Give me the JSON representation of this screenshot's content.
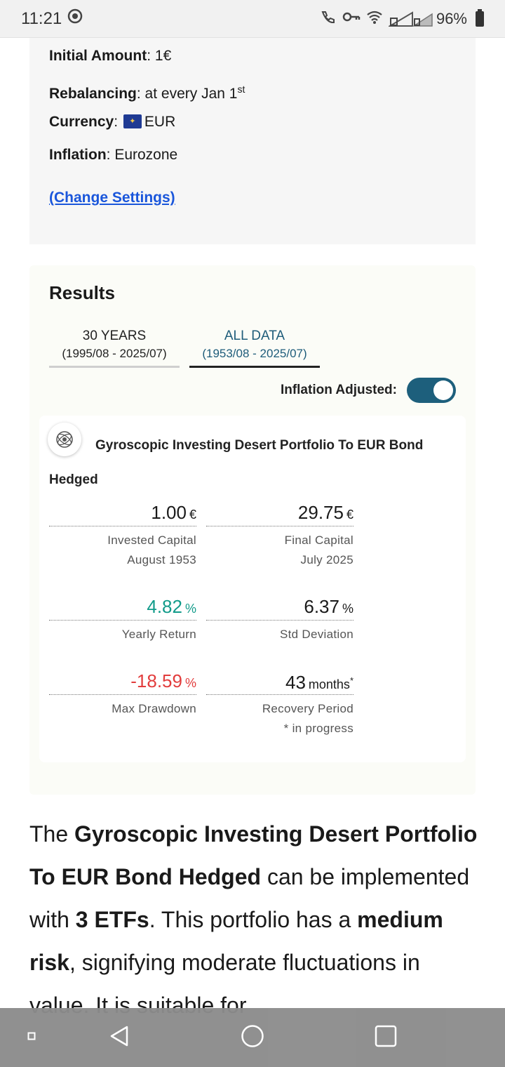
{
  "status_bar": {
    "time": "11:21",
    "battery": "96%"
  },
  "settings": {
    "initial_amount_label": "Initial Amount",
    "initial_amount_value": ": 1€",
    "rebalancing_label": "Rebalancing",
    "rebalancing_value": ": at every Jan 1",
    "rebalancing_sup": "st",
    "currency_label": "Currency",
    "currency_sep": ":",
    "currency_value": "EUR",
    "inflation_label": "Inflation",
    "inflation_value": ": Eurozone",
    "change_link": "(Change Settings)"
  },
  "results": {
    "title": "Results",
    "tabs": [
      {
        "label": "30 YEARS",
        "range": "(1995/08 - 2025/07)",
        "active": false
      },
      {
        "label": "ALL DATA",
        "range": "(1953/08 - 2025/07)",
        "active": true
      }
    ],
    "inflation_toggle_label": "Inflation Adjusted:",
    "inflation_toggle_on": true,
    "portfolio_name": "Gyroscopic Investing Desert Portfolio To EUR Bond Hedged",
    "stats": {
      "invested": {
        "value": "1.00",
        "unit": "€",
        "label": "Invested Capital",
        "sub": "August 1953"
      },
      "final": {
        "value": "29.75",
        "unit": "€",
        "label": "Final Capital",
        "sub": "July 2025"
      },
      "yearly": {
        "value": "4.82",
        "unit": "%",
        "label": "Yearly Return",
        "color": "#129b8a"
      },
      "stddev": {
        "value": "6.37",
        "unit": "%",
        "label": "Std Deviation"
      },
      "drawdown": {
        "value": "-18.59",
        "unit": "%",
        "label": "Max Drawdown",
        "color": "#e23d3d"
      },
      "recovery": {
        "value": "43",
        "unit": "months",
        "unit_sup": "*",
        "label": "Recovery Period",
        "sub": "* in progress"
      }
    }
  },
  "description": {
    "p1": "The ",
    "b1": "Gyroscopic Investing Desert Portfolio To EUR Bond Hedged",
    "p2": " can be implemented with ",
    "b2": "3 ETFs",
    "p3": ". This portfolio has a ",
    "b3": "medium risk",
    "p4": ", signifying moderate fluctuations in value. It is suitable for"
  }
}
